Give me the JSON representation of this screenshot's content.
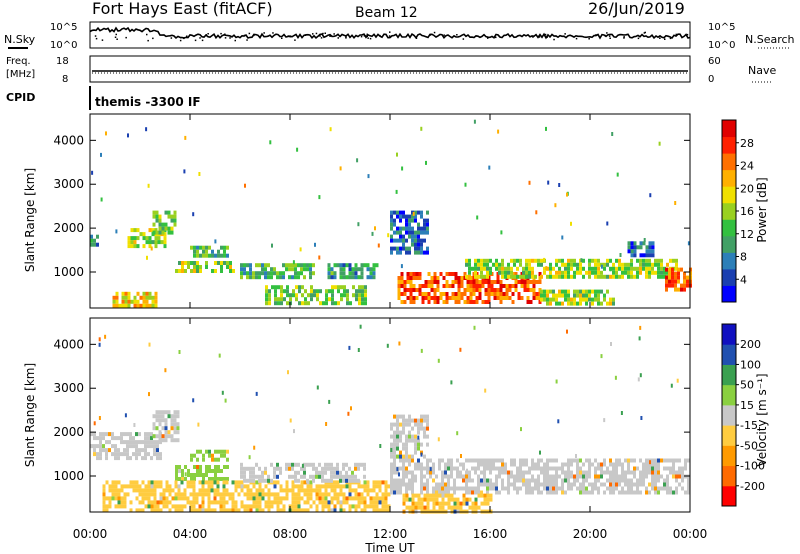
{
  "header": {
    "station": "Fort Hays East (fitACF)",
    "beam": "Beam 12",
    "date": "26/Jun/2019"
  },
  "top_panels": {
    "nsky": {
      "label": "N.Sky",
      "ticks": [
        "10^5",
        "10^0"
      ],
      "right_label": "N.Search",
      "right_ticks": [
        "10^5",
        "10^0"
      ]
    },
    "freq": {
      "label_line1": "Freq.",
      "label_line2": "[MHz]",
      "ticks": [
        "18",
        "8"
      ],
      "right_label": "Nave",
      "right_ticks": [
        "60",
        "0"
      ]
    },
    "cpid": {
      "label": "CPID",
      "text": "themis -3300 IF"
    }
  },
  "chart_data": [
    {
      "type": "heatmap",
      "name": "power",
      "ylabel": "Slant Range [km]",
      "yticks": [
        "4000",
        "3000",
        "2000",
        "1000"
      ],
      "ylim": [
        180,
        4600
      ],
      "xlim_hours": [
        0,
        24
      ],
      "colorbar": {
        "label": "Power [dB]",
        "ticks": [
          "28",
          "24",
          "20",
          "16",
          "12",
          "8",
          "4"
        ],
        "range": [
          0,
          32
        ],
        "colors": [
          "#0000ff",
          "#1a3fb0",
          "#2c7fb8",
          "#41a065",
          "#33c040",
          "#99d020",
          "#f0e000",
          "#ffb000",
          "#ff7000",
          "#ff2000",
          "#e00000"
        ]
      },
      "regions": [
        {
          "t": [
            0.0,
            0.35
          ],
          "r": [
            1650,
            1850
          ],
          "v": 8
        },
        {
          "t": [
            0.9,
            2.7
          ],
          "r": [
            190,
            550
          ],
          "v": 20
        },
        {
          "t": [
            1.5,
            3.0
          ],
          "r": [
            1550,
            2000
          ],
          "v": 16
        },
        {
          "t": [
            2.5,
            3.4
          ],
          "r": [
            1900,
            2400
          ],
          "v": 14
        },
        {
          "t": [
            3.4,
            5.8
          ],
          "r": [
            1000,
            1250
          ],
          "v": 16
        },
        {
          "t": [
            4.0,
            5.5
          ],
          "r": [
            1400,
            1600
          ],
          "v": 12
        },
        {
          "t": [
            6.0,
            9.0
          ],
          "r": [
            850,
            1200
          ],
          "v": 12
        },
        {
          "t": [
            7.0,
            11.0
          ],
          "r": [
            300,
            700
          ],
          "v": 14
        },
        {
          "t": [
            9.5,
            11.5
          ],
          "r": [
            900,
            1200
          ],
          "v": 10
        },
        {
          "t": [
            12.3,
            18.0
          ],
          "r": [
            350,
            1000
          ],
          "v": 26
        },
        {
          "t": [
            12.0,
            13.5
          ],
          "r": [
            1400,
            2400
          ],
          "v": 6
        },
        {
          "t": [
            15.0,
            23.5
          ],
          "r": [
            900,
            1300
          ],
          "v": 16
        },
        {
          "t": [
            18.0,
            21.0
          ],
          "r": [
            300,
            600
          ],
          "v": 16
        },
        {
          "t": [
            21.5,
            22.5
          ],
          "r": [
            1400,
            1700
          ],
          "v": 6
        },
        {
          "t": [
            23.0,
            24.0
          ],
          "r": [
            600,
            1100
          ],
          "v": 26
        }
      ]
    },
    {
      "type": "heatmap",
      "name": "velocity",
      "ylabel": "Slant Range [km]",
      "yticks": [
        "4000",
        "3000",
        "2000",
        "1000"
      ],
      "ylim": [
        180,
        4600
      ],
      "xlim_hours": [
        0,
        24
      ],
      "xticks": [
        "00:00",
        "04:00",
        "08:00",
        "12:00",
        "16:00",
        "20:00",
        "00:00"
      ],
      "xlabel": "Time UT",
      "colorbar": {
        "label": "Velocity [m s⁻¹]",
        "ticks": [
          "200",
          "100",
          "50",
          "15",
          "-15",
          "-50",
          "-100",
          "-200"
        ],
        "bins": [
          -300,
          -200,
          -100,
          -50,
          -15,
          15,
          50,
          100,
          200,
          300
        ],
        "colors": [
          "#ff0000",
          "#ff6a00",
          "#ff9a00",
          "#ffcc40",
          "#c8c8c8",
          "#8ad040",
          "#3aa050",
          "#2050b0",
          "#1010c0"
        ]
      },
      "regions": [
        {
          "t": [
            0.0,
            2.8
          ],
          "r": [
            1400,
            2000
          ],
          "v": 0
        },
        {
          "t": [
            2.5,
            3.5
          ],
          "r": [
            1800,
            2500
          ],
          "v": 0
        },
        {
          "t": [
            3.4,
            5.5
          ],
          "r": [
            900,
            1250
          ],
          "v": 30
        },
        {
          "t": [
            4.0,
            5.5
          ],
          "r": [
            1400,
            1600
          ],
          "v": 30
        },
        {
          "t": [
            0.5,
            12.0
          ],
          "r": [
            180,
            900
          ],
          "v": -30
        },
        {
          "t": [
            6.0,
            11.0
          ],
          "r": [
            900,
            1300
          ],
          "v": 0
        },
        {
          "t": [
            12.0,
            24.0
          ],
          "r": [
            600,
            1400
          ],
          "v": 0
        },
        {
          "t": [
            12.5,
            16.0
          ],
          "r": [
            200,
            600
          ],
          "v": -40
        },
        {
          "t": [
            12.0,
            13.5
          ],
          "r": [
            1400,
            2400
          ],
          "v": 0
        }
      ]
    }
  ]
}
